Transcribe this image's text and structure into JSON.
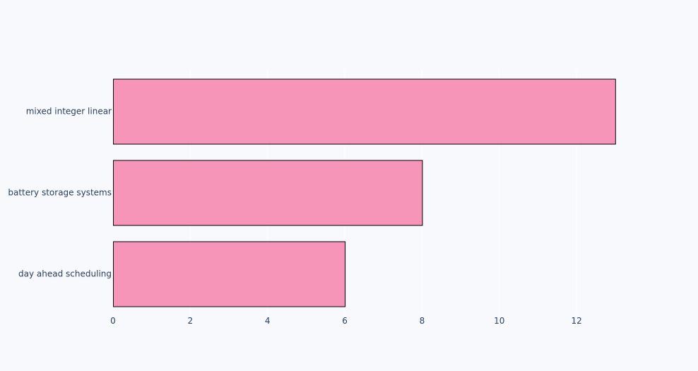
{
  "chart_data": {
    "type": "bar",
    "orientation": "horizontal",
    "categories": [
      "day ahead scheduling",
      "battery storage systems",
      "mixed integer linear"
    ],
    "values": [
      6,
      8,
      13
    ],
    "x_ticks": [
      0,
      2,
      4,
      6,
      8,
      10,
      12
    ],
    "xlim": [
      0,
      13.68
    ],
    "grid": true,
    "colors": {
      "bar_fill": "#f795b9",
      "bar_stroke": "#000000",
      "background": "#f7f9fd",
      "grid": "#ffffff",
      "text": "#2a3f5f"
    }
  }
}
